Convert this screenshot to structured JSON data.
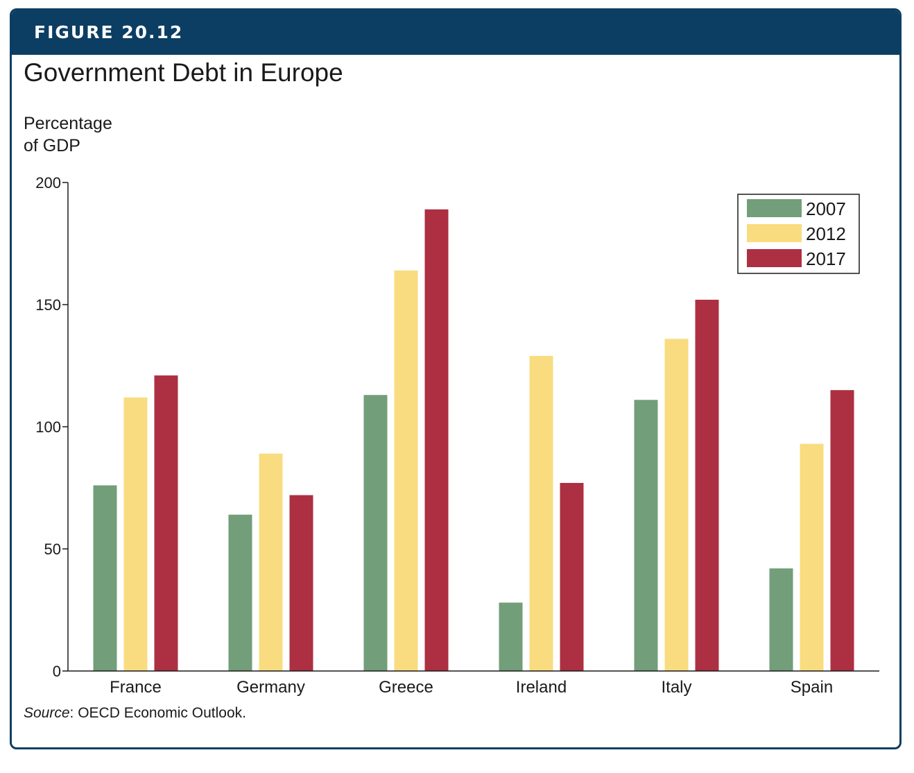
{
  "figure": {
    "label": "FIGURE 20.12",
    "source_prefix": "Source",
    "source_text": ": OECD Economic Outlook."
  },
  "colors": {
    "header": "#0c3e63",
    "2007": "#729e79",
    "2012": "#f8dc7f",
    "2017": "#ad2f42"
  },
  "chart_data": {
    "type": "bar",
    "title": "Government Debt in Europe",
    "ylabel": [
      "Percentage",
      "of GDP"
    ],
    "xlabel": "",
    "ylim": [
      0,
      200
    ],
    "yticks": [
      0,
      50,
      100,
      150,
      200
    ],
    "categories": [
      "France",
      "Germany",
      "Greece",
      "Ireland",
      "Italy",
      "Spain"
    ],
    "series": [
      {
        "name": "2007",
        "values": [
          76,
          64,
          113,
          28,
          111,
          42
        ]
      },
      {
        "name": "2012",
        "values": [
          112,
          89,
          164,
          129,
          136,
          93
        ]
      },
      {
        "name": "2017",
        "values": [
          121,
          72,
          189,
          77,
          152,
          115
        ]
      }
    ],
    "legend": "top-right",
    "grid": false
  }
}
